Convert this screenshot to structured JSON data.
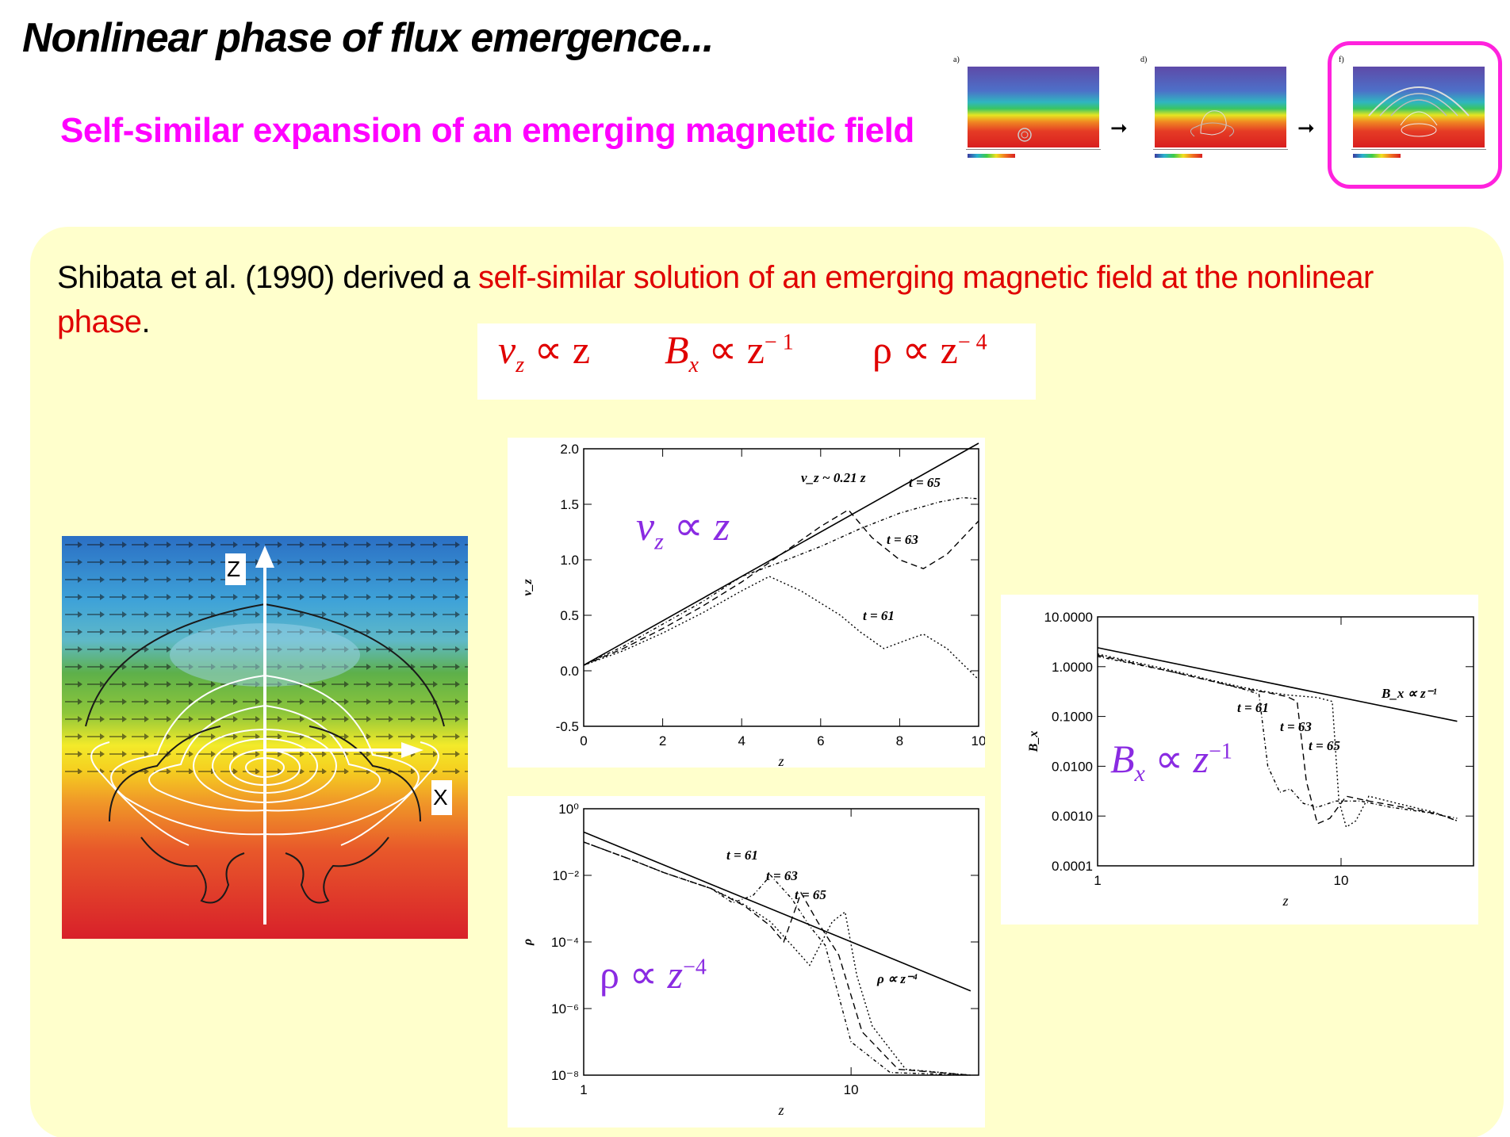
{
  "header": {
    "title": "Nonlinear phase of flux emergence...",
    "subtitle": "Self-similar expansion of an emerging magnetic field"
  },
  "thumbnails": {
    "panels": [
      {
        "label": "a)"
      },
      {
        "label": "d)"
      },
      {
        "label": "f)"
      }
    ],
    "highlight_color": "#ff22dd"
  },
  "intro": {
    "text_before": "Shibata et al. (1990) derived a ",
    "text_highlight": "self-similar solution of an emerging magnetic field at the nonlinear phase",
    "text_after": "."
  },
  "formulas": {
    "vz": {
      "var": "v",
      "sub": "z",
      "rel": " ∝ z"
    },
    "bx": {
      "var": "B",
      "sub": "x",
      "rel": " ∝ z",
      "exp": "− 1"
    },
    "rho": {
      "var": "ρ",
      "rel": " ∝ z",
      "exp": "− 4"
    }
  },
  "sim_image": {
    "z_label": "Z",
    "x_label": "X"
  },
  "chart_data": [
    {
      "type": "line",
      "xlabel": "z",
      "ylabel": "v_z",
      "xlim": [
        0,
        10
      ],
      "ylim": [
        -0.5,
        2.0
      ],
      "x_ticks": [
        "0",
        "2",
        "4",
        "6",
        "8",
        "10"
      ],
      "y_ticks": [
        "-0.5",
        "0.0",
        "0.5",
        "1.0",
        "1.5",
        "2.0"
      ],
      "annotations": [
        "v_z ~ 0.21 z",
        "t = 65",
        "t = 63",
        "t = 61"
      ],
      "overlay_formula": "v_z ∝ z",
      "series": [
        {
          "name": "v_z ~ 0.21 z",
          "x": [
            0,
            10
          ],
          "y": [
            0.05,
            2.05
          ]
        },
        {
          "name": "t = 65",
          "x": [
            0,
            1,
            2,
            3,
            4,
            5,
            6,
            7,
            8,
            9,
            9.6,
            10
          ],
          "y": [
            0.05,
            0.22,
            0.42,
            0.62,
            0.85,
            0.98,
            1.12,
            1.28,
            1.42,
            1.52,
            1.56,
            1.55
          ]
        },
        {
          "name": "t = 63",
          "x": [
            0,
            1,
            2,
            3,
            4,
            5,
            6,
            6.7,
            7.3,
            8.0,
            8.6,
            9.2,
            10
          ],
          "y": [
            0.05,
            0.2,
            0.38,
            0.58,
            0.8,
            1.05,
            1.3,
            1.45,
            1.2,
            1.0,
            0.92,
            1.05,
            1.35
          ]
        },
        {
          "name": "t = 61",
          "x": [
            0,
            1,
            2,
            3,
            4,
            4.7,
            5.5,
            6.5,
            7.0,
            7.6,
            8.2,
            8.6,
            9.2,
            10
          ],
          "y": [
            0.05,
            0.18,
            0.34,
            0.52,
            0.72,
            0.85,
            0.72,
            0.5,
            0.35,
            0.2,
            0.28,
            0.33,
            0.2,
            -0.08
          ]
        }
      ]
    },
    {
      "type": "line",
      "xlabel": "z",
      "ylabel": "ρ",
      "xscale": "log",
      "yscale": "log",
      "xlim": [
        1,
        30
      ],
      "ylim": [
        1e-08,
        1
      ],
      "x_ticks": [
        "1",
        "10"
      ],
      "y_ticks": [
        "10⁰",
        "10⁻²",
        "10⁻⁴",
        "10⁻⁶",
        "10⁻⁸"
      ],
      "annotations": [
        "t = 61",
        "t = 63",
        "t = 65",
        "ρ ∝ z⁻⁴"
      ],
      "overlay_formula": "ρ ∝ z⁻⁴",
      "series": [
        {
          "name": "ρ ∝ z⁻⁴",
          "x": [
            1,
            28
          ],
          "y": [
            0.2,
            3.4e-06
          ]
        },
        {
          "name": "t = 61",
          "x": [
            1,
            1.5,
            2,
            3,
            3.6,
            4.3,
            5.0,
            6.0,
            7.0,
            8.0,
            10,
            14,
            28
          ],
          "y": [
            0.1,
            0.03,
            0.012,
            0.004,
            0.0015,
            0.0025,
            0.01,
            0.002,
            0.0003,
            8e-05,
            1e-07,
            1.2e-08,
            1e-08
          ]
        },
        {
          "name": "t = 63",
          "x": [
            1,
            1.5,
            2,
            3,
            4,
            5,
            5.6,
            6.5,
            7.5,
            9,
            11,
            15,
            28
          ],
          "y": [
            0.1,
            0.03,
            0.012,
            0.004,
            0.0012,
            0.0003,
            0.0001,
            0.003,
            0.0004,
            4e-05,
            2e-07,
            1.5e-08,
            1e-08
          ]
        },
        {
          "name": "t = 65",
          "x": [
            1,
            1.5,
            2,
            3,
            4,
            5,
            6,
            7,
            8.5,
            9.5,
            10.5,
            12,
            16,
            28
          ],
          "y": [
            0.1,
            0.03,
            0.012,
            0.004,
            0.0013,
            0.0004,
            8e-05,
            2e-05,
            0.0004,
            0.0008,
            1e-05,
            3e-07,
            1.5e-08,
            1e-08
          ]
        }
      ]
    },
    {
      "type": "line",
      "xlabel": "z",
      "ylabel": "B_x",
      "xscale": "log",
      "yscale": "log",
      "xlim": [
        1,
        35
      ],
      "ylim": [
        0.0001,
        10
      ],
      "x_ticks": [
        "1",
        "10"
      ],
      "y_ticks": [
        "10.0000",
        "1.0000",
        "0.1000",
        "0.0100",
        "0.0010",
        "0.0001"
      ],
      "annotations": [
        "B_x ∝ z⁻¹",
        "t = 61",
        "t = 63",
        "t = 65"
      ],
      "overlay_formula": "B_x ∝ z⁻¹",
      "series": [
        {
          "name": "B_x ∝ z⁻¹",
          "x": [
            1,
            30
          ],
          "y": [
            2.4,
            0.08
          ]
        },
        {
          "name": "t = 61",
          "x": [
            1,
            2,
            3,
            4,
            4.6,
            5.0,
            5.6,
            6.2,
            7.0,
            8.0,
            9.5,
            12,
            16,
            22,
            30
          ],
          "y": [
            1.6,
            0.8,
            0.5,
            0.35,
            0.28,
            0.01,
            0.003,
            0.0035,
            0.0018,
            0.0015,
            0.002,
            0.002,
            0.0015,
            0.0012,
            0.0009
          ]
        },
        {
          "name": "t = 63",
          "x": [
            1,
            2,
            3,
            4,
            5,
            6,
            6.6,
            7.2,
            8.0,
            9.0,
            10.5,
            13,
            18,
            25,
            30
          ],
          "y": [
            1.7,
            0.8,
            0.5,
            0.36,
            0.3,
            0.25,
            0.2,
            0.005,
            0.0007,
            0.0009,
            0.0025,
            0.002,
            0.0015,
            0.0011,
            0.0008
          ]
        },
        {
          "name": "t = 65",
          "x": [
            1,
            2,
            3,
            4,
            5,
            6,
            8,
            9.2,
            9.8,
            10.5,
            11.5,
            13,
            17,
            24,
            30
          ],
          "y": [
            1.8,
            0.85,
            0.52,
            0.38,
            0.31,
            0.27,
            0.24,
            0.2,
            0.002,
            0.0006,
            0.0008,
            0.0025,
            0.0018,
            0.0012,
            0.0008
          ]
        }
      ]
    }
  ]
}
